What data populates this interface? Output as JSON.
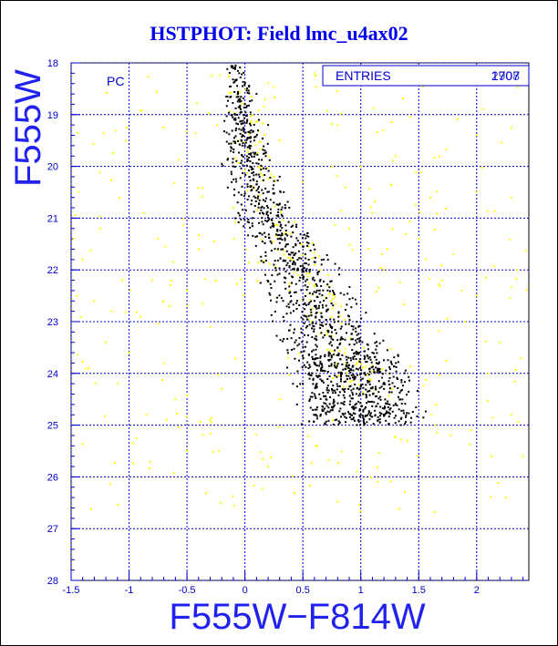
{
  "title": "HSTPHOT: Field lmc_u4ax02",
  "chart_data": {
    "type": "scatter",
    "title": "HSTPHOT: Field lmc_u4ax02",
    "xlabel": "F555W−F814W",
    "ylabel": "F555W",
    "xlim": [
      -1.5,
      2.45
    ],
    "ylim": [
      28,
      18
    ],
    "y_inverted": true,
    "grid": true,
    "x_ticks": [
      -1.5,
      -1,
      -0.5,
      0,
      0.5,
      1,
      1.5,
      2
    ],
    "x_tick_labels": [
      "-1.5",
      "-1",
      "-0.5",
      "0",
      "0.5",
      "1",
      "1.5",
      "2"
    ],
    "y_ticks": [
      18,
      19,
      20,
      21,
      22,
      23,
      24,
      25,
      26,
      27,
      28
    ],
    "y_tick_labels": [
      "18",
      "19",
      "20",
      "21",
      "22",
      "23",
      "24",
      "25",
      "26",
      "27",
      "28"
    ],
    "panel_label": "PC",
    "stats": {
      "label": "ENTRIES",
      "values": [
        "1707",
        "2908"
      ]
    },
    "colors": {
      "frame": "#000000",
      "grid": "#0000cc",
      "text": "#0000cc",
      "title": "#0000ee"
    },
    "series": [
      {
        "color": "#000000",
        "description": "main-sequence sequence (dense)",
        "sequence_track": [
          [
            -0.08,
            18.0
          ],
          [
            -0.04,
            18.8
          ],
          [
            0.0,
            19.6
          ],
          [
            0.04,
            20.2
          ],
          [
            0.14,
            20.8
          ],
          [
            0.32,
            21.4
          ],
          [
            0.48,
            22.0
          ],
          [
            0.6,
            22.7
          ],
          [
            0.74,
            23.4
          ],
          [
            0.92,
            24.1
          ],
          [
            1.05,
            24.6
          ]
        ],
        "points": [
          [
            -0.08,
            18.05
          ],
          [
            -0.05,
            18.2
          ],
          [
            -0.02,
            18.45
          ],
          [
            -0.06,
            18.6
          ],
          [
            0.0,
            18.8
          ],
          [
            -0.03,
            18.95
          ],
          [
            0.02,
            19.1
          ],
          [
            -0.01,
            19.3
          ],
          [
            0.03,
            19.45
          ],
          [
            0.0,
            19.6
          ],
          [
            0.05,
            19.75
          ],
          [
            0.02,
            19.9
          ],
          [
            0.07,
            20.05
          ],
          [
            0.04,
            20.2
          ],
          [
            0.1,
            20.35
          ],
          [
            0.12,
            20.5
          ],
          [
            0.16,
            20.65
          ],
          [
            0.14,
            20.8
          ],
          [
            0.2,
            20.95
          ],
          [
            0.24,
            21.1
          ],
          [
            0.28,
            21.25
          ],
          [
            0.3,
            21.4
          ],
          [
            0.35,
            21.55
          ],
          [
            0.38,
            21.7
          ],
          [
            0.42,
            21.85
          ],
          [
            0.46,
            22.0
          ],
          [
            0.5,
            22.15
          ],
          [
            0.52,
            22.3
          ],
          [
            0.56,
            22.45
          ],
          [
            0.6,
            22.6
          ],
          [
            0.62,
            22.75
          ],
          [
            0.66,
            22.9
          ],
          [
            0.7,
            23.05
          ],
          [
            0.72,
            23.2
          ],
          [
            0.76,
            23.35
          ],
          [
            0.8,
            23.5
          ],
          [
            0.84,
            23.65
          ],
          [
            0.88,
            23.8
          ],
          [
            0.9,
            23.95
          ],
          [
            0.95,
            24.1
          ],
          [
            1.0,
            24.25
          ],
          [
            1.02,
            24.4
          ],
          [
            1.08,
            24.55
          ],
          [
            0.62,
            24.2
          ],
          [
            0.7,
            24.5
          ],
          [
            0.85,
            24.8
          ],
          [
            1.2,
            24.3
          ],
          [
            1.3,
            24.6
          ],
          [
            0.55,
            23.9
          ],
          [
            0.45,
            24.6
          ],
          [
            1.1,
            23.6
          ],
          [
            0.98,
            23.1
          ],
          [
            0.68,
            21.8
          ],
          [
            0.3,
            20.2
          ],
          [
            0.18,
            19.8
          ],
          [
            0.58,
            23.3
          ],
          [
            0.82,
            24.95
          ],
          [
            1.15,
            24.9
          ],
          [
            0.5,
            24.2
          ],
          [
            1.25,
            24.0
          ],
          [
            0.4,
            22.6
          ],
          [
            0.25,
            21.9
          ],
          [
            0.9,
            22.9
          ],
          [
            1.0,
            24.8
          ],
          [
            0.75,
            24.65
          ],
          [
            0.6,
            24.4
          ],
          [
            0.2,
            19.2
          ],
          [
            0.1,
            18.6
          ],
          [
            0.35,
            20.8
          ],
          [
            0.65,
            23.7
          ]
        ]
      },
      {
        "color": "#ffff00",
        "description": "field / scattered stars (sparse)",
        "points": [
          [
            -1.4,
            21.8
          ],
          [
            -1.3,
            22.6
          ],
          [
            -1.2,
            23.4
          ],
          [
            -1.1,
            24.2
          ],
          [
            -1.0,
            23.6
          ],
          [
            -0.9,
            22.9
          ],
          [
            -0.8,
            22.2
          ],
          [
            -0.7,
            23.8
          ],
          [
            -0.6,
            24.5
          ],
          [
            -0.5,
            22.4
          ],
          [
            -0.4,
            21.6
          ],
          [
            -0.3,
            23.1
          ],
          [
            -0.2,
            24.3
          ],
          [
            -0.1,
            20.8
          ],
          [
            0.3,
            19.5
          ],
          [
            0.5,
            20.3
          ],
          [
            0.8,
            19.2
          ],
          [
            1.1,
            20.9
          ],
          [
            1.3,
            19.8
          ],
          [
            1.5,
            21.4
          ],
          [
            1.6,
            20.6
          ],
          [
            1.7,
            22.2
          ],
          [
            1.8,
            21.7
          ],
          [
            1.9,
            23.0
          ],
          [
            2.0,
            22.5
          ],
          [
            2.1,
            24.0
          ],
          [
            2.2,
            23.4
          ],
          [
            2.3,
            24.8
          ],
          [
            2.35,
            22.0
          ],
          [
            2.4,
            25.6
          ],
          [
            2.25,
            26.4
          ],
          [
            1.95,
            25.1
          ],
          [
            1.65,
            24.6
          ],
          [
            1.4,
            25.3
          ],
          [
            0.2,
            25.8
          ],
          [
            -0.5,
            25.5
          ],
          [
            -0.3,
            24.9
          ],
          [
            -1.45,
            22.5
          ],
          [
            -1.35,
            23.9
          ],
          [
            -0.85,
            24.8
          ],
          [
            0.6,
            18.2
          ],
          [
            1.0,
            20.0
          ],
          [
            0.9,
            21.2
          ],
          [
            1.2,
            22.0
          ],
          [
            -1.25,
            21.2
          ],
          [
            -0.75,
            21.4
          ],
          [
            -0.65,
            22.7
          ],
          [
            -1.15,
            22.8
          ],
          [
            2.3,
            20.6
          ],
          [
            2.0,
            19.4
          ]
        ]
      }
    ]
  }
}
